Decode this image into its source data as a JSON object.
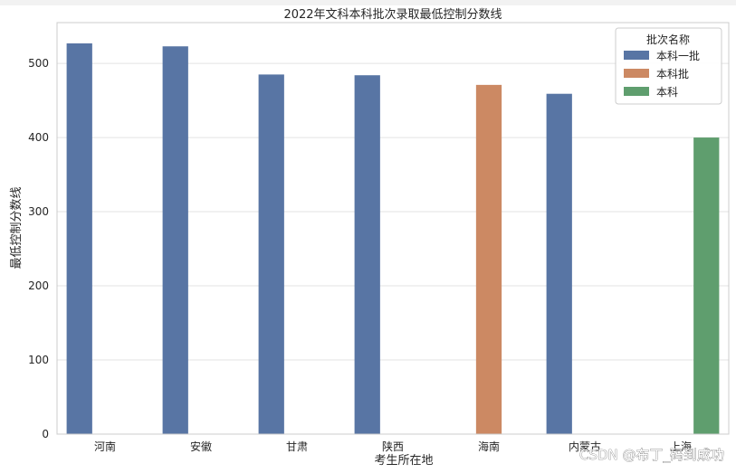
{
  "chart_data": {
    "type": "bar",
    "title": "2022年文科本科批次录取最低控制分数线",
    "xlabel": "考生所在地",
    "ylabel": "最低控制分数线",
    "categories": [
      "河南",
      "安徽",
      "甘肃",
      "陕西",
      "海南",
      "内蒙古",
      "上海"
    ],
    "series": [
      {
        "name": "本科一批",
        "color": "#5875a4",
        "values": [
          527,
          523,
          485,
          484,
          null,
          459,
          null
        ]
      },
      {
        "name": "本科批",
        "color": "#cc8963",
        "values": [
          null,
          null,
          null,
          null,
          471,
          null,
          null
        ]
      },
      {
        "name": "本科",
        "color": "#5f9e6e",
        "values": [
          null,
          null,
          null,
          null,
          null,
          null,
          400
        ]
      }
    ],
    "ylim": [
      0,
      555
    ],
    "yticks": [
      0,
      100,
      200,
      300,
      400,
      500
    ],
    "grid": "horizontal",
    "legend": {
      "title": "批次名称",
      "placement": "top-right"
    }
  },
  "watermark": "CSDN @布丁_码到成功"
}
